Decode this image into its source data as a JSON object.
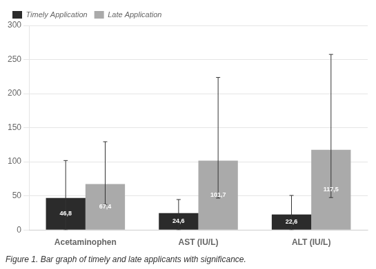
{
  "chart_data": {
    "type": "bar",
    "categories": [
      "Acetaminophen",
      "AST (IU/L)",
      "ALT (IU/L)"
    ],
    "series": [
      {
        "name": "Timely Application",
        "color": "#2b2b2b",
        "values": [
          46.8,
          24.6,
          22.6
        ],
        "value_labels": [
          "46,8",
          "24,6",
          "22,6"
        ],
        "errors_up": [
          55,
          20,
          28
        ],
        "errors_down": [
          46.8,
          24.6,
          22.6
        ]
      },
      {
        "name": "Late Application",
        "color": "#aaaaaa",
        "values": [
          67.4,
          101.7,
          117.5
        ],
        "value_labels": [
          "67,4",
          "101,7",
          "117,5"
        ],
        "errors_up": [
          62,
          122,
          140
        ],
        "errors_down": [
          30,
          55,
          70
        ]
      }
    ],
    "ylim": [
      0,
      300
    ],
    "yticks": [
      0,
      50,
      100,
      150,
      200,
      250,
      300
    ],
    "grid": true,
    "legend": "upper left",
    "data_labels": true,
    "caption": "Figure 1. Bar graph of timely and late applicants with significance."
  }
}
